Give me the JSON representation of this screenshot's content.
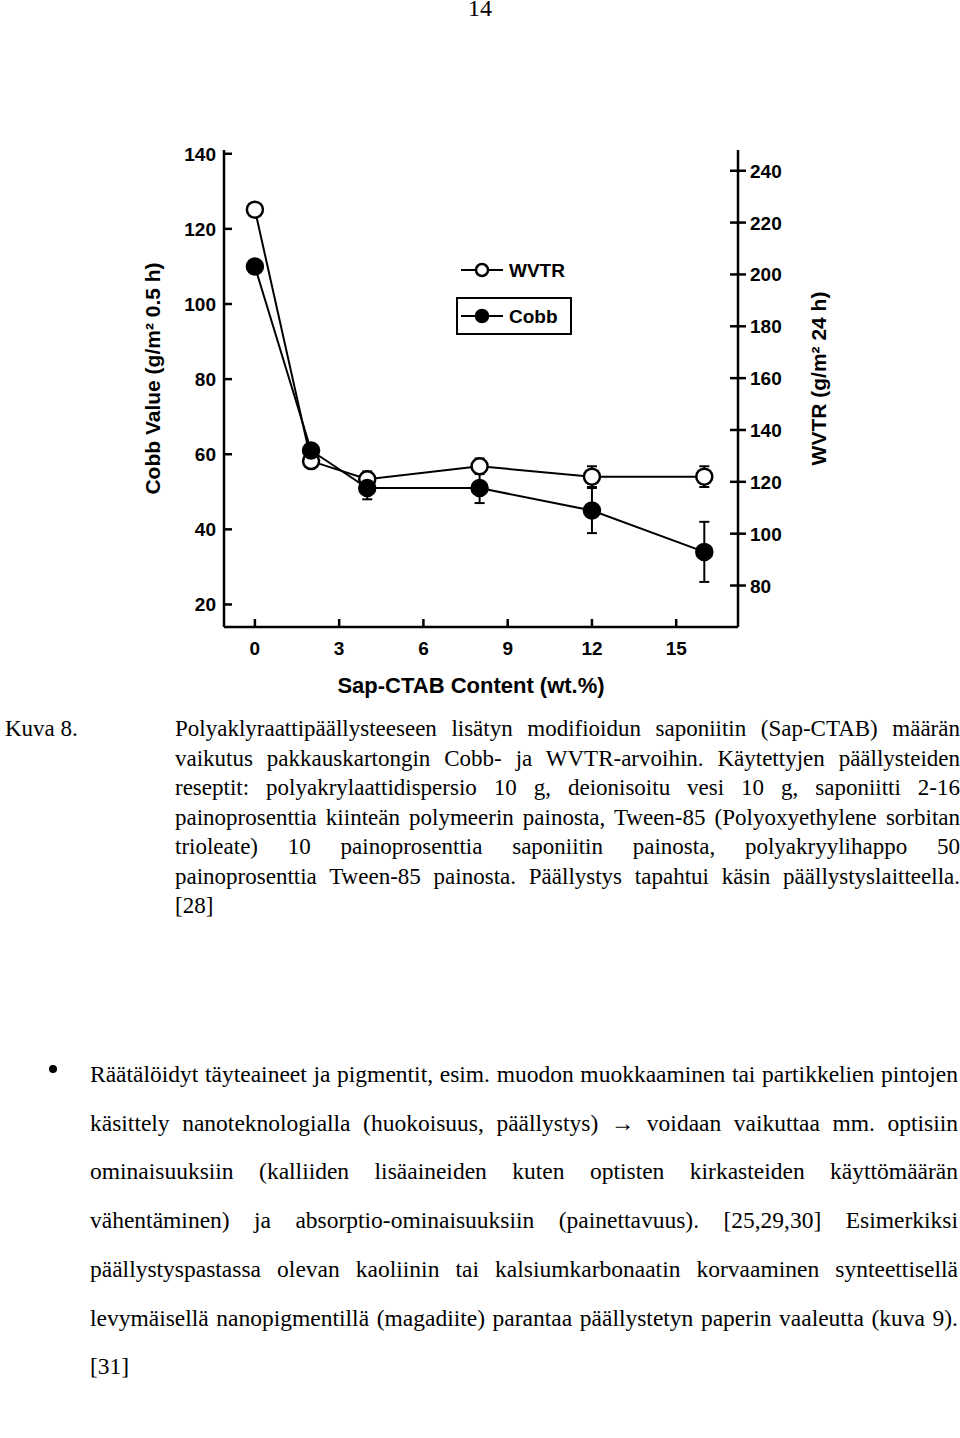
{
  "page_number": "14",
  "chart_data": {
    "type": "line",
    "x_label": "Sap-CTAB Content (wt.%)",
    "y_label": "Cobb Value (g/m² 0.5 h)",
    "y2_label": "WVTR (g/m² 24 h)",
    "x": [
      0,
      2,
      4,
      8,
      12,
      16
    ],
    "xlim": [
      -1.1,
      17.2
    ],
    "xticks": [
      0,
      3,
      6,
      9,
      12,
      15
    ],
    "ylim": [
      14,
      141
    ],
    "yticks": [
      20,
      40,
      60,
      80,
      100,
      120,
      140
    ],
    "y2lim": [
      64,
      248
    ],
    "y2ticks": [
      80,
      100,
      120,
      140,
      160,
      180,
      200,
      220,
      240
    ],
    "legend": "upper center",
    "series": [
      {
        "name": "WVTR",
        "color": "#000000",
        "marker": "circle-open",
        "axis": "y2",
        "values": [
          225,
          128,
          121,
          126,
          122,
          122
        ],
        "errors": [
          0,
          0,
          3,
          3,
          4,
          4
        ]
      },
      {
        "name": "Cobb",
        "color": "#000000",
        "marker": "circle",
        "values": [
          110,
          61,
          51,
          51,
          45,
          34
        ],
        "errors": [
          0,
          0,
          3,
          4,
          6,
          8
        ]
      }
    ]
  },
  "caption": {
    "label": "Kuva 8.",
    "text": "Polyaklyraattipäällysteeseen lisätyn modifioidun saponiitin (Sap-CTAB) määrän vaikutus pakkauskartongin Cobb- ja WVTR-arvoihin. Käytettyjen päällysteiden reseptit: polyakrylaattidispersio 10 g, deionisoitu vesi 10 g, saponiitti 2-16 painoprosenttia kiinteän polymeerin painosta, Tween-85 (Polyoxyethylene sorbitan trioleate) 10 painoprosenttia saponiitin painosta, polyakryylihappo 50 painoprosenttia Tween-85 painosta. Päällystys tapahtui käsin päällystyslaitteella. [28]"
  },
  "bullet": {
    "text": "Räätälöidyt täyteaineet ja pigmentit, esim. muodon muokkaaminen tai partikkelien pintojen käsittely nanoteknologialla (huokoisuus, päällystys) → voidaan vaikuttaa mm. optisiin ominaisuuksiin (kalliiden lisäaineiden kuten optisten kirkasteiden käyttömäärän vähentäminen) ja absorptio-ominaisuuksiin (painettavuus). [25,29,30] Esimerkiksi päällystyspastassa olevan kaoliinin tai kalsiumkarbonaatin korvaaminen synteettisellä levymäisellä nanopigmentillä (magadiite) parantaa päällystetyn paperin vaaleutta (kuva 9). [31]"
  }
}
